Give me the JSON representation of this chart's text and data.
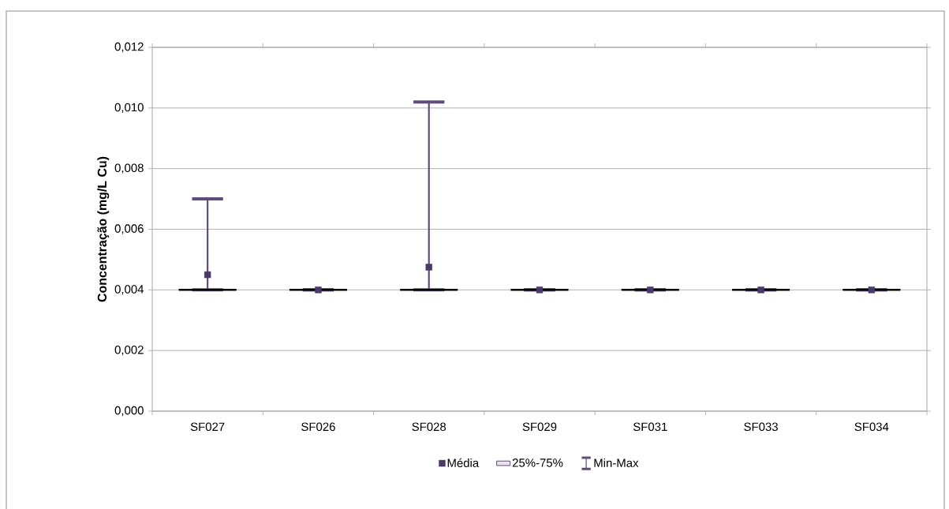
{
  "chart_data": {
    "type": "box",
    "ylabel": "Concentração (mg/L Cu)",
    "categories": [
      "SF027",
      "SF026",
      "SF028",
      "SF029",
      "SF031",
      "SF033",
      "SF034"
    ],
    "series": [
      {
        "name": "Média",
        "type": "scatter",
        "marker": "square",
        "color": "#4a3a6a",
        "x": [
          "SF027",
          "SF026",
          "SF028",
          "SF029",
          "SF031",
          "SF033",
          "SF034"
        ],
        "values": [
          0.0045,
          0.004,
          0.00475,
          0.004,
          0.004,
          0.004,
          0.004
        ]
      },
      {
        "name": "25%-75%",
        "type": "box",
        "color": "#5f4b7c",
        "boxes": [
          {
            "low": 0.004,
            "q1": 0.004,
            "median": 0.004,
            "q3": 0.004,
            "high": 0.007
          },
          {
            "low": 0.004,
            "q1": 0.004,
            "median": 0.004,
            "q3": 0.004,
            "high": 0.004
          },
          {
            "low": 0.004,
            "q1": 0.004,
            "median": 0.004,
            "q3": 0.004,
            "high": 0.0102
          },
          {
            "low": 0.004,
            "q1": 0.004,
            "median": 0.004,
            "q3": 0.004,
            "high": 0.004
          },
          {
            "low": 0.004,
            "q1": 0.004,
            "median": 0.004,
            "q3": 0.004,
            "high": 0.004
          },
          {
            "low": 0.004,
            "q1": 0.004,
            "median": 0.004,
            "q3": 0.004,
            "high": 0.004
          },
          {
            "low": 0.004,
            "q1": 0.004,
            "median": 0.004,
            "q3": 0.004,
            "high": 0.004
          }
        ]
      }
    ],
    "annotations": [
      "Min-Max"
    ],
    "ylim": [
      0,
      0.012
    ],
    "yticks": [
      {
        "value": 0,
        "label": "0,000"
      },
      {
        "value": 0.002,
        "label": "0,002"
      },
      {
        "value": 0.004,
        "label": "0,004"
      },
      {
        "value": 0.006,
        "label": "0,006"
      },
      {
        "value": 0.008,
        "label": "0,008"
      },
      {
        "value": 0.01,
        "label": "0,010"
      },
      {
        "value": 0.012,
        "label": "0,012"
      }
    ],
    "grid": "y",
    "legend": "bottom"
  }
}
